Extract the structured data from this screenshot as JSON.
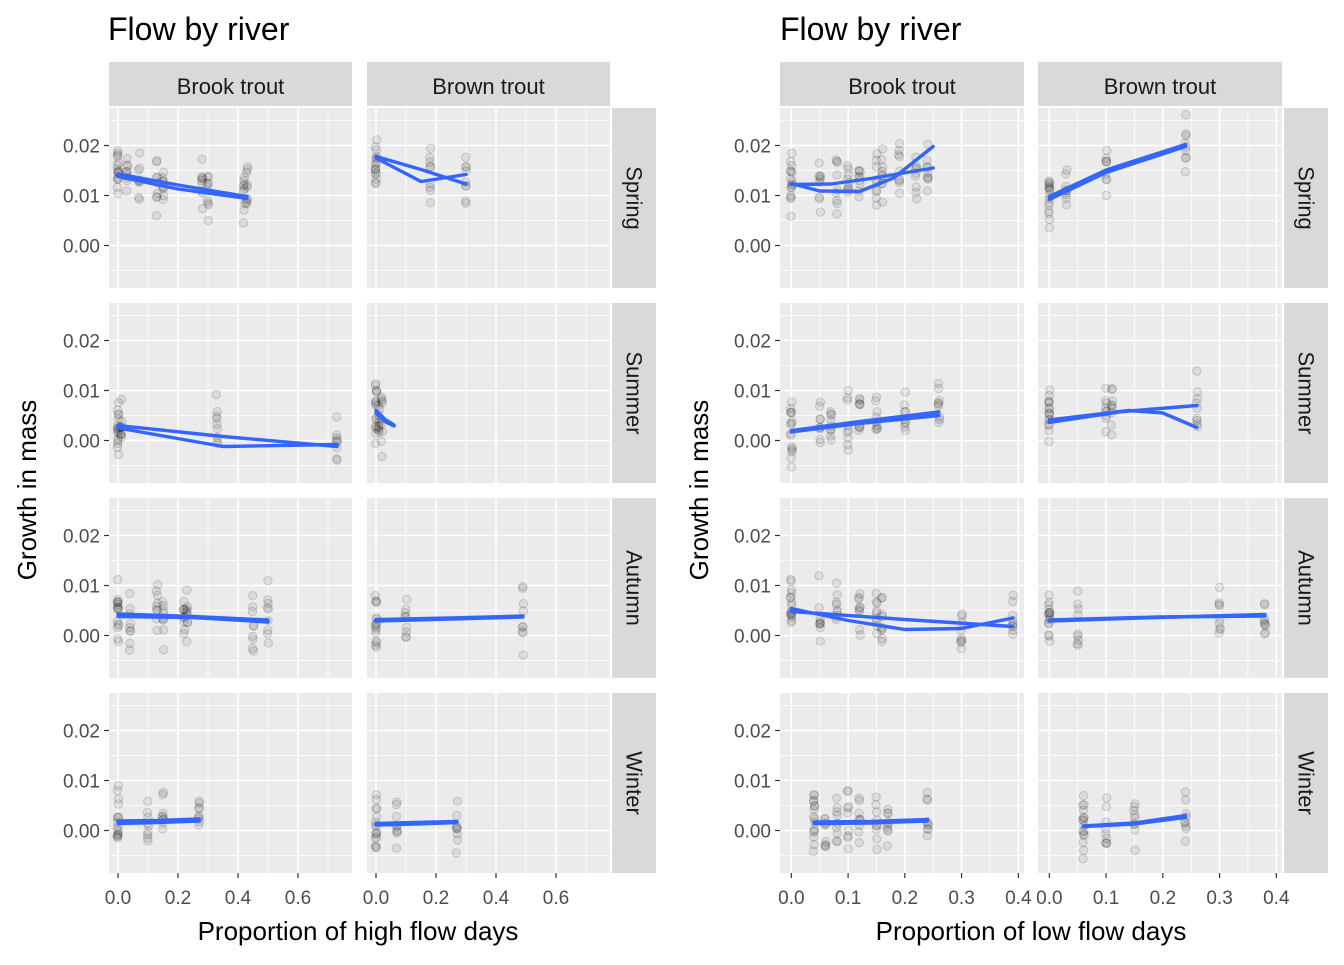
{
  "colors": {
    "fit_line": "#3366FF",
    "point": "#000000",
    "panel": "#EBEBEB",
    "strip": "#D9D9D9"
  },
  "chart_data": [
    {
      "type": "scatter",
      "title": "Flow by river",
      "xlabel": "Proportion of high flow days",
      "ylabel": "Growth in mass",
      "column_facets": [
        "Brook trout",
        "Brown trout"
      ],
      "row_facets": [
        "Spring",
        "Summer",
        "Autumn",
        "Winter"
      ],
      "xlim": [
        -0.03,
        0.78
      ],
      "ylim": [
        -0.0085,
        0.0275
      ],
      "x_ticks": [
        0.0,
        0.2,
        0.4,
        0.6
      ],
      "x_tick_labels": [
        "0.0",
        "0.2",
        "0.4",
        "0.6"
      ],
      "y_ticks": [
        0.0,
        0.01,
        0.02
      ],
      "y_tick_labels": [
        "0.00",
        "0.01",
        "0.02"
      ],
      "grid": true,
      "panels": [
        {
          "col": 0,
          "row": 0,
          "x_groups": [
            0.0,
            0.03,
            0.07,
            0.13,
            0.15,
            0.28,
            0.3,
            0.42,
            0.43
          ],
          "fits": [
            [
              [
                0.0,
                0.0143
              ],
              [
                0.2,
                0.0121
              ],
              [
                0.43,
                0.0098
              ]
            ],
            [
              [
                0.0,
                0.0138
              ],
              [
                0.2,
                0.0113
              ],
              [
                0.43,
                0.0094
              ]
            ]
          ]
        },
        {
          "col": 1,
          "row": 0,
          "x_groups": [
            0.0,
            0.18,
            0.3
          ],
          "fits": [
            [
              [
                0.0,
                0.0178
              ],
              [
                0.15,
                0.0152
              ],
              [
                0.3,
                0.0123
              ]
            ],
            [
              [
                0.0,
                0.0175
              ],
              [
                0.15,
                0.0128
              ],
              [
                0.3,
                0.0142
              ]
            ]
          ]
        },
        {
          "col": 0,
          "row": 1,
          "x_groups": [
            0.0,
            0.01,
            0.33,
            0.73
          ],
          "fits": [
            [
              [
                0.0,
                0.003
              ],
              [
                0.35,
                0.0008
              ],
              [
                0.73,
                -0.0012
              ]
            ],
            [
              [
                0.0,
                0.0025
              ],
              [
                0.35,
                -0.0012
              ],
              [
                0.73,
                -0.0008
              ]
            ]
          ]
        },
        {
          "col": 1,
          "row": 1,
          "x_groups": [
            0.0,
            0.01,
            0.02
          ],
          "fits": [
            [
              [
                0.0,
                0.006
              ],
              [
                0.03,
                0.0042
              ],
              [
                0.06,
                0.0031
              ]
            ],
            [
              [
                0.0,
                0.0055
              ],
              [
                0.03,
                0.0038
              ],
              [
                0.06,
                0.0029
              ]
            ]
          ]
        },
        {
          "col": 0,
          "row": 2,
          "x_groups": [
            0.0,
            0.04,
            0.13,
            0.15,
            0.22,
            0.23,
            0.45,
            0.5
          ],
          "fits": [
            [
              [
                0.0,
                0.0043
              ],
              [
                0.25,
                0.0038
              ],
              [
                0.5,
                0.0031
              ]
            ],
            [
              [
                0.0,
                0.0038
              ],
              [
                0.25,
                0.0036
              ],
              [
                0.5,
                0.0027
              ]
            ]
          ]
        },
        {
          "col": 1,
          "row": 2,
          "x_groups": [
            0.0,
            0.1,
            0.49
          ],
          "fits": [
            [
              [
                0.0,
                0.0029
              ],
              [
                0.25,
                0.0033
              ],
              [
                0.49,
                0.0037
              ]
            ],
            [
              [
                0.0,
                0.0032
              ],
              [
                0.25,
                0.0035
              ],
              [
                0.49,
                0.0039
              ]
            ]
          ]
        },
        {
          "col": 0,
          "row": 3,
          "x_groups": [
            0.0,
            0.1,
            0.15,
            0.27
          ],
          "fits": [
            [
              [
                0.0,
                0.0019
              ],
              [
                0.13,
                0.002
              ],
              [
                0.27,
                0.0023
              ]
            ],
            [
              [
                0.0,
                0.0014
              ],
              [
                0.13,
                0.0016
              ],
              [
                0.27,
                0.0019
              ]
            ]
          ]
        },
        {
          "col": 1,
          "row": 3,
          "x_groups": [
            0.0,
            0.07,
            0.27
          ],
          "fits": [
            [
              [
                0.0,
                0.0011
              ],
              [
                0.13,
                0.0013
              ],
              [
                0.27,
                0.0016
              ]
            ],
            [
              [
                0.0,
                0.0014
              ],
              [
                0.13,
                0.0016
              ],
              [
                0.27,
                0.0018
              ]
            ]
          ]
        }
      ]
    },
    {
      "type": "scatter",
      "title": "Flow by river",
      "xlabel": "Proportion of low flow days",
      "ylabel": "Growth in mass",
      "column_facets": [
        "Brook trout",
        "Brown trout"
      ],
      "row_facets": [
        "Spring",
        "Summer",
        "Autumn",
        "Winter"
      ],
      "xlim": [
        -0.02,
        0.41
      ],
      "ylim": [
        -0.0085,
        0.0275
      ],
      "x_ticks": [
        0.0,
        0.1,
        0.2,
        0.3,
        0.4
      ],
      "x_tick_labels": [
        "0.0",
        "0.1",
        "0.2",
        "0.3",
        "0.4"
      ],
      "y_ticks": [
        0.0,
        0.01,
        0.02
      ],
      "y_tick_labels": [
        "0.00",
        "0.01",
        "0.02"
      ],
      "grid": true,
      "panels": [
        {
          "col": 0,
          "row": 0,
          "x_groups": [
            0.0,
            0.05,
            0.08,
            0.1,
            0.12,
            0.15,
            0.16,
            0.19,
            0.22,
            0.24
          ],
          "fits": [
            [
              [
                0.0,
                0.0122
              ],
              [
                0.07,
                0.0123
              ],
              [
                0.14,
                0.0134
              ],
              [
                0.25,
                0.0155
              ]
            ],
            [
              [
                0.0,
                0.0124
              ],
              [
                0.05,
                0.0109
              ],
              [
                0.12,
                0.0108
              ],
              [
                0.18,
                0.0135
              ],
              [
                0.25,
                0.0198
              ]
            ]
          ]
        },
        {
          "col": 1,
          "row": 0,
          "x_groups": [
            0.0,
            0.03,
            0.1,
            0.24
          ],
          "fits": [
            [
              [
                0.0,
                0.0098
              ],
              [
                0.1,
                0.0151
              ],
              [
                0.24,
                0.0202
              ]
            ],
            [
              [
                0.0,
                0.0092
              ],
              [
                0.1,
                0.0146
              ],
              [
                0.24,
                0.0198
              ]
            ]
          ]
        },
        {
          "col": 0,
          "row": 1,
          "x_groups": [
            0.0,
            0.05,
            0.07,
            0.1,
            0.12,
            0.15,
            0.2,
            0.26
          ],
          "fits": [
            [
              [
                0.0,
                0.002
              ],
              [
                0.12,
                0.0038
              ],
              [
                0.26,
                0.0057
              ]
            ],
            [
              [
                0.0,
                0.0017
              ],
              [
                0.12,
                0.0034
              ],
              [
                0.26,
                0.005
              ]
            ]
          ]
        },
        {
          "col": 1,
          "row": 1,
          "x_groups": [
            0.0,
            0.1,
            0.11,
            0.26
          ],
          "fits": [
            [
              [
                0.0,
                0.0036
              ],
              [
                0.13,
                0.0058
              ],
              [
                0.26,
                0.007
              ]
            ],
            [
              [
                0.0,
                0.0041
              ],
              [
                0.14,
                0.006
              ],
              [
                0.2,
                0.0055
              ],
              [
                0.26,
                0.0026
              ]
            ]
          ]
        },
        {
          "col": 0,
          "row": 2,
          "x_groups": [
            0.0,
            0.05,
            0.08,
            0.12,
            0.15,
            0.16,
            0.3,
            0.39
          ],
          "fits": [
            [
              [
                0.0,
                0.0048
              ],
              [
                0.2,
                0.0032
              ],
              [
                0.39,
                0.0018
              ]
            ],
            [
              [
                0.0,
                0.0054
              ],
              [
                0.1,
                0.003
              ],
              [
                0.2,
                0.0012
              ],
              [
                0.3,
                0.0014
              ],
              [
                0.39,
                0.0035
              ]
            ]
          ]
        },
        {
          "col": 1,
          "row": 2,
          "x_groups": [
            0.0,
            0.05,
            0.3,
            0.38
          ],
          "fits": [
            [
              [
                0.0,
                0.0029
              ],
              [
                0.19,
                0.0036
              ],
              [
                0.38,
                0.0042
              ]
            ],
            [
              [
                0.0,
                0.0031
              ],
              [
                0.19,
                0.0037
              ],
              [
                0.38,
                0.0039
              ]
            ]
          ]
        },
        {
          "col": 0,
          "row": 3,
          "x_groups": [
            0.04,
            0.06,
            0.08,
            0.1,
            0.12,
            0.15,
            0.17,
            0.24
          ],
          "fits": [
            [
              [
                0.04,
                0.0017
              ],
              [
                0.14,
                0.0018
              ],
              [
                0.24,
                0.0022
              ]
            ],
            [
              [
                0.04,
                0.0014
              ],
              [
                0.14,
                0.0015
              ],
              [
                0.24,
                0.0019
              ]
            ]
          ]
        },
        {
          "col": 1,
          "row": 3,
          "x_groups": [
            0.06,
            0.1,
            0.15,
            0.24
          ],
          "fits": [
            [
              [
                0.06,
                0.0009
              ],
              [
                0.15,
                0.0015
              ],
              [
                0.24,
                0.003
              ]
            ],
            [
              [
                0.06,
                0.0008
              ],
              [
                0.15,
                0.0013
              ],
              [
                0.24,
                0.0026
              ]
            ]
          ]
        }
      ]
    }
  ]
}
